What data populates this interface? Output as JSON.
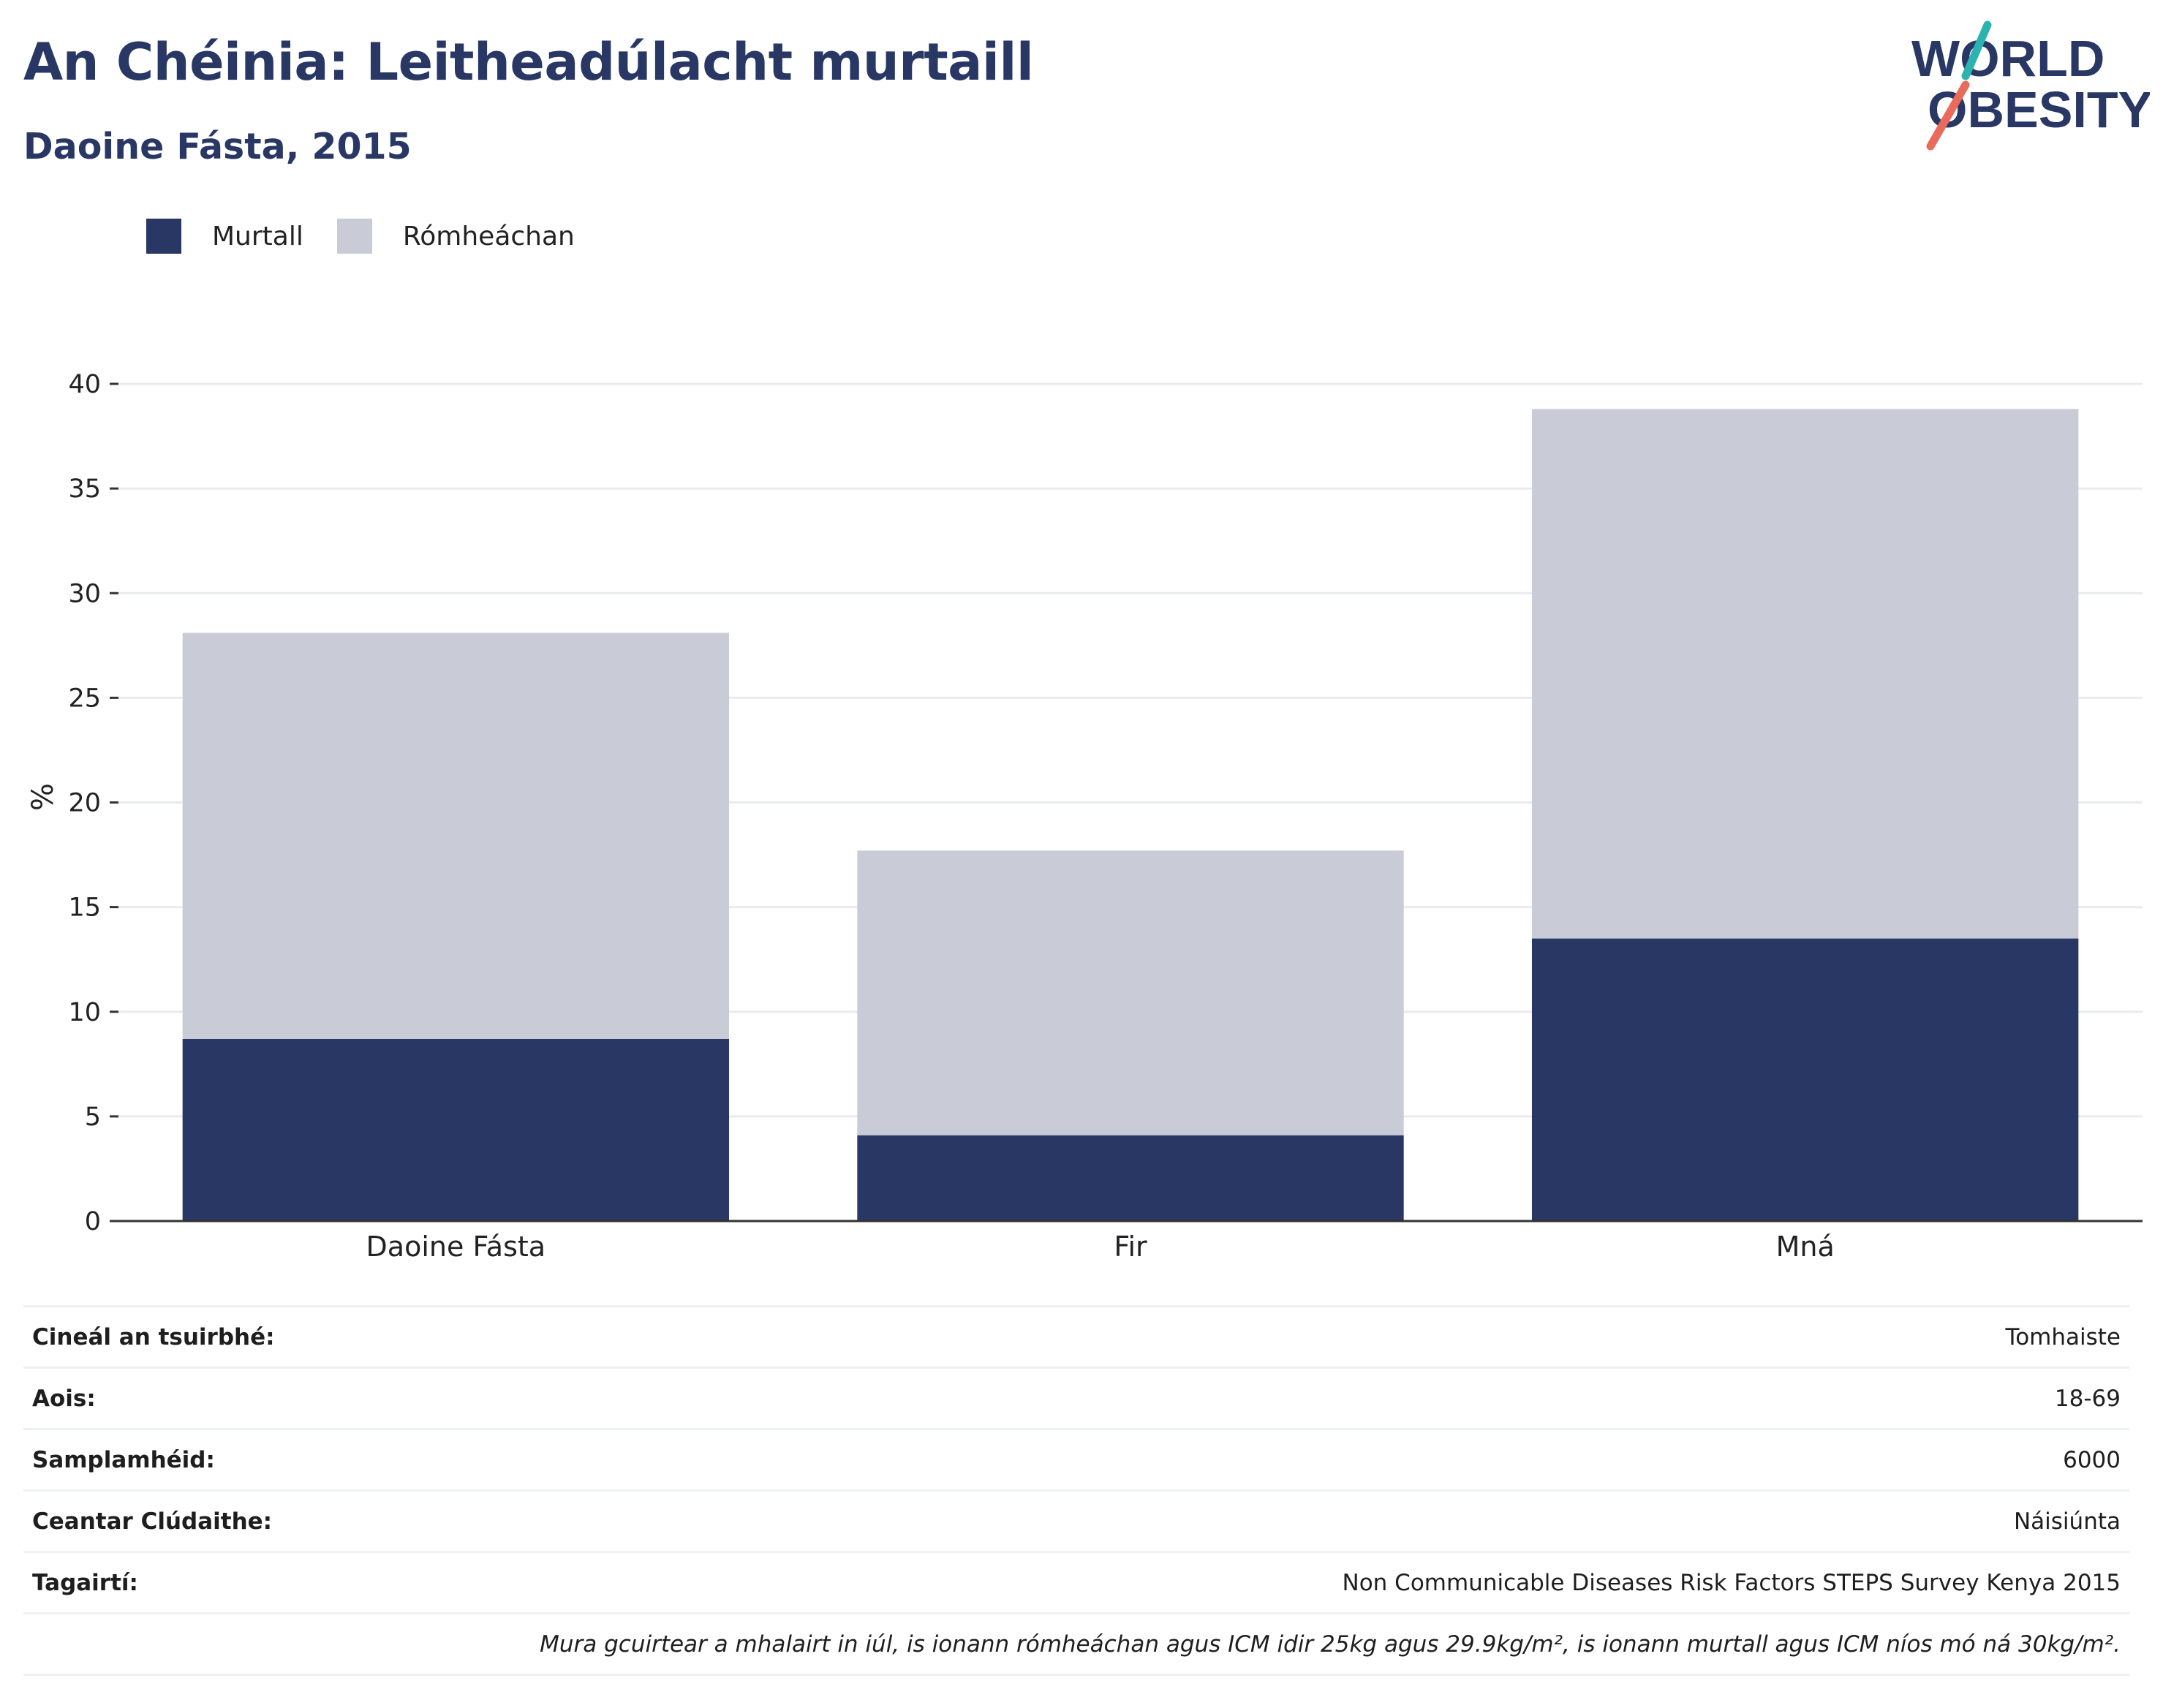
{
  "header": {
    "title": "An Chéinia: Leitheadúlacht murtaill",
    "subtitle": "Daoine Fásta, 2015"
  },
  "logo": {
    "line1": "WORLD",
    "line2": "OBESITY",
    "colors": {
      "text": "#293765",
      "slash_top": "#2ab3b0",
      "slash_bottom": "#ea6a5c"
    }
  },
  "legend": [
    {
      "label": "Murtall",
      "color": "#293765"
    },
    {
      "label": "Rómheáchan",
      "color": "#c9ccd7"
    }
  ],
  "chart_data": {
    "type": "bar",
    "stacked": true,
    "categories": [
      "Daoine Fásta",
      "Fir",
      "Mná"
    ],
    "series": [
      {
        "name": "Murtall",
        "values": [
          8.7,
          4.1,
          13.5
        ],
        "color": "#293765"
      },
      {
        "name": "Rómheáchan",
        "values": [
          19.4,
          13.6,
          25.3
        ],
        "color": "#c9ccd7"
      }
    ],
    "ylabel": "%",
    "xlabel": "",
    "ylim": [
      0,
      40
    ],
    "yticks": [
      0,
      5,
      10,
      15,
      20,
      25,
      30,
      35,
      40
    ],
    "grid": true
  },
  "info_table": [
    {
      "label": "Cineál an tsuirbhé:",
      "value": "Tomhaiste"
    },
    {
      "label": "Aois:",
      "value": "18-69"
    },
    {
      "label": "Samplamhéid:",
      "value": "6000"
    },
    {
      "label": "Ceantar Clúdaithe:",
      "value": "Náisiúnta"
    },
    {
      "label": "Tagairtí:",
      "value": "Non Communicable Diseases Risk Factors STEPS Survey Kenya 2015"
    }
  ],
  "footnote": "Mura gcuirtear a mhalairt in iúl, is ionann rómheáchan agus ICM idir 25kg agus 29.9kg/m², is ionann murtall agus ICM níos mó ná 30kg/m²."
}
